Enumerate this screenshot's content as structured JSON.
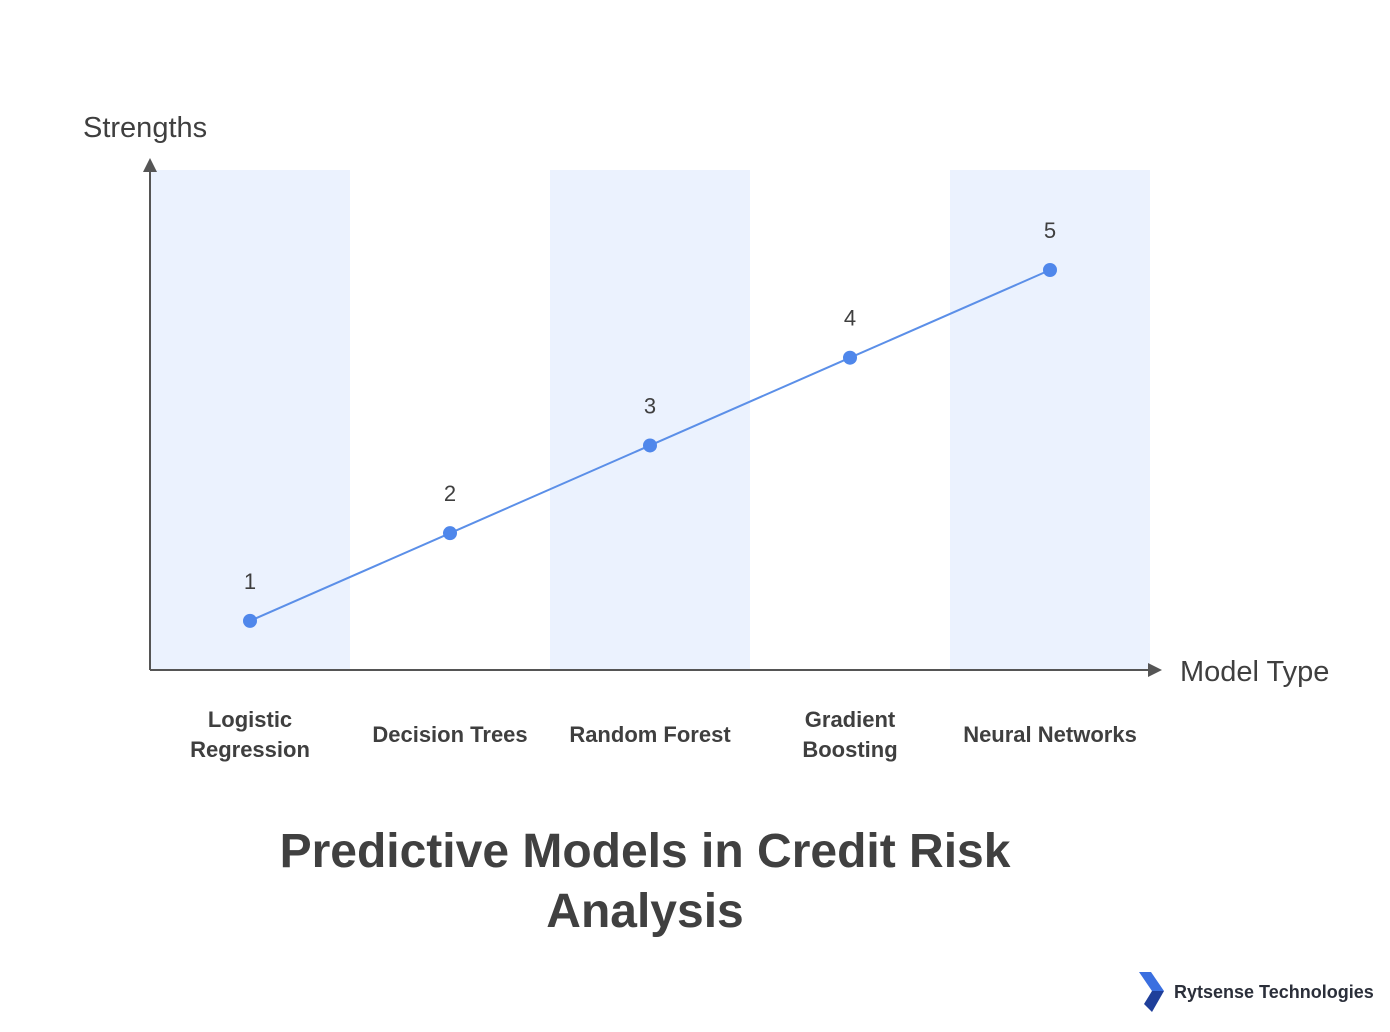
{
  "chart_data": {
    "type": "line",
    "title": "Predictive Models in Credit Risk Analysis",
    "xlabel": "Model Type",
    "ylabel": "Strengths",
    "categories": [
      "Logistic Regression",
      "Decision Trees",
      "Random Forest",
      "Gradient Boosting",
      "Neural Networks"
    ],
    "values": [
      1,
      2,
      3,
      4,
      5
    ],
    "data_labels": [
      "1",
      "2",
      "3",
      "4",
      "5"
    ],
    "ylim": [
      0.44,
      6.14
    ],
    "grid": false,
    "legend": "none",
    "colors": {
      "line": "#5b8fe8",
      "marker": "#4f87eb",
      "band": "#ebf2fe",
      "axis": "#555555",
      "text": "#3f3f3f"
    }
  },
  "brand": {
    "name": "Rytsense Technologies",
    "logo_icon": "rytsense-chevron-logo",
    "logo_color": "#2f5fd1"
  }
}
